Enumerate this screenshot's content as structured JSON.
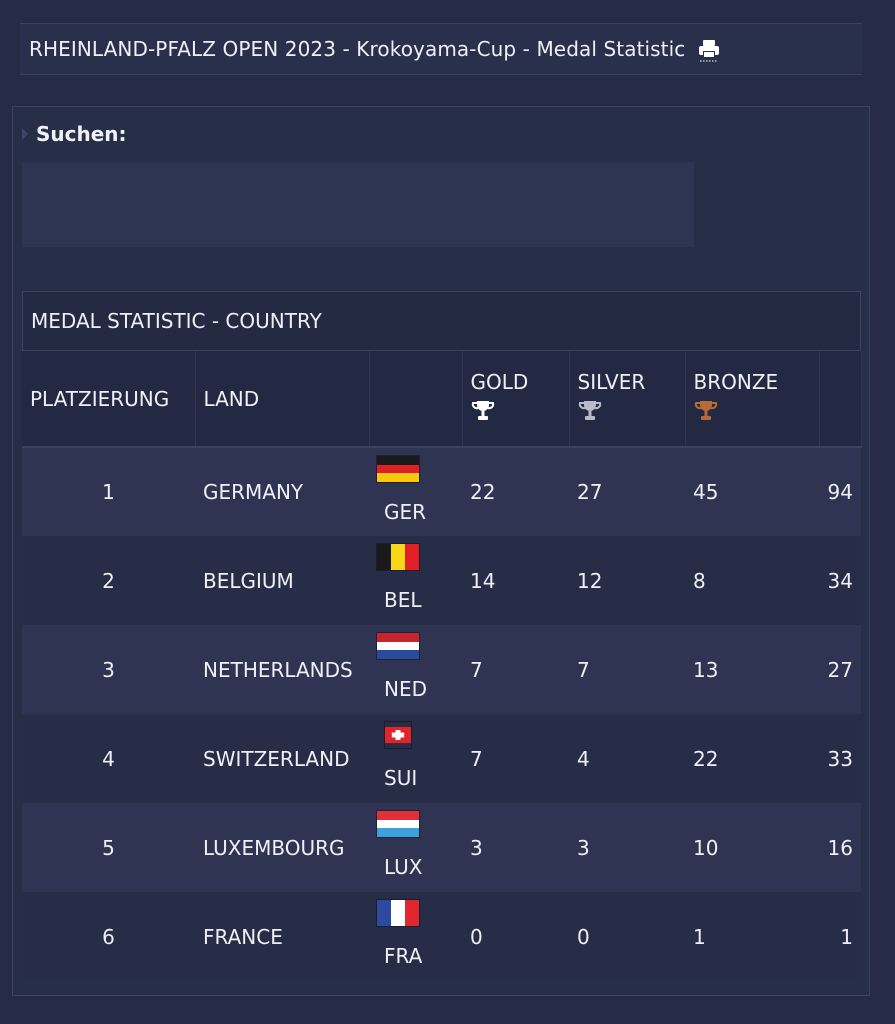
{
  "header": {
    "title": "RHEINLAND-PFALZ OPEN 2023 - Krokoyama-Cup - Medal Statistic",
    "print_icon": "print-icon"
  },
  "search": {
    "label": "Suchen:"
  },
  "table": {
    "caption": "MEDAL STATISTIC - COUNTRY",
    "columns": {
      "rank": "PLATZIERUNG",
      "country": "LAND",
      "flag": "",
      "gold": "GOLD",
      "silver": "SILVER",
      "bronze": "BRONZE",
      "total": ""
    },
    "colors": {
      "gold_cup": "#ffffff",
      "silver_cup": "#b9bcc6",
      "bronze_cup": "#b8693a"
    },
    "rows": [
      {
        "rank": "1",
        "country": "GERMANY",
        "code": "GER",
        "gold": "22",
        "silver": "27",
        "bronze": "45",
        "total": "94",
        "flag": "germany"
      },
      {
        "rank": "2",
        "country": "BELGIUM",
        "code": "BEL",
        "gold": "14",
        "silver": "12",
        "bronze": "8",
        "total": "34",
        "flag": "belgium"
      },
      {
        "rank": "3",
        "country": "NETHERLANDS",
        "code": "NED",
        "gold": "7",
        "silver": "7",
        "bronze": "13",
        "total": "27",
        "flag": "netherlands"
      },
      {
        "rank": "4",
        "country": "SWITZERLAND",
        "code": "SUI",
        "gold": "7",
        "silver": "4",
        "bronze": "22",
        "total": "33",
        "flag": "switzerland"
      },
      {
        "rank": "5",
        "country": "LUXEMBOURG",
        "code": "LUX",
        "gold": "3",
        "silver": "3",
        "bronze": "10",
        "total": "16",
        "flag": "luxembourg"
      },
      {
        "rank": "6",
        "country": "FRANCE",
        "code": "FRA",
        "gold": "0",
        "silver": "0",
        "bronze": "1",
        "total": "1",
        "flag": "france"
      }
    ]
  }
}
